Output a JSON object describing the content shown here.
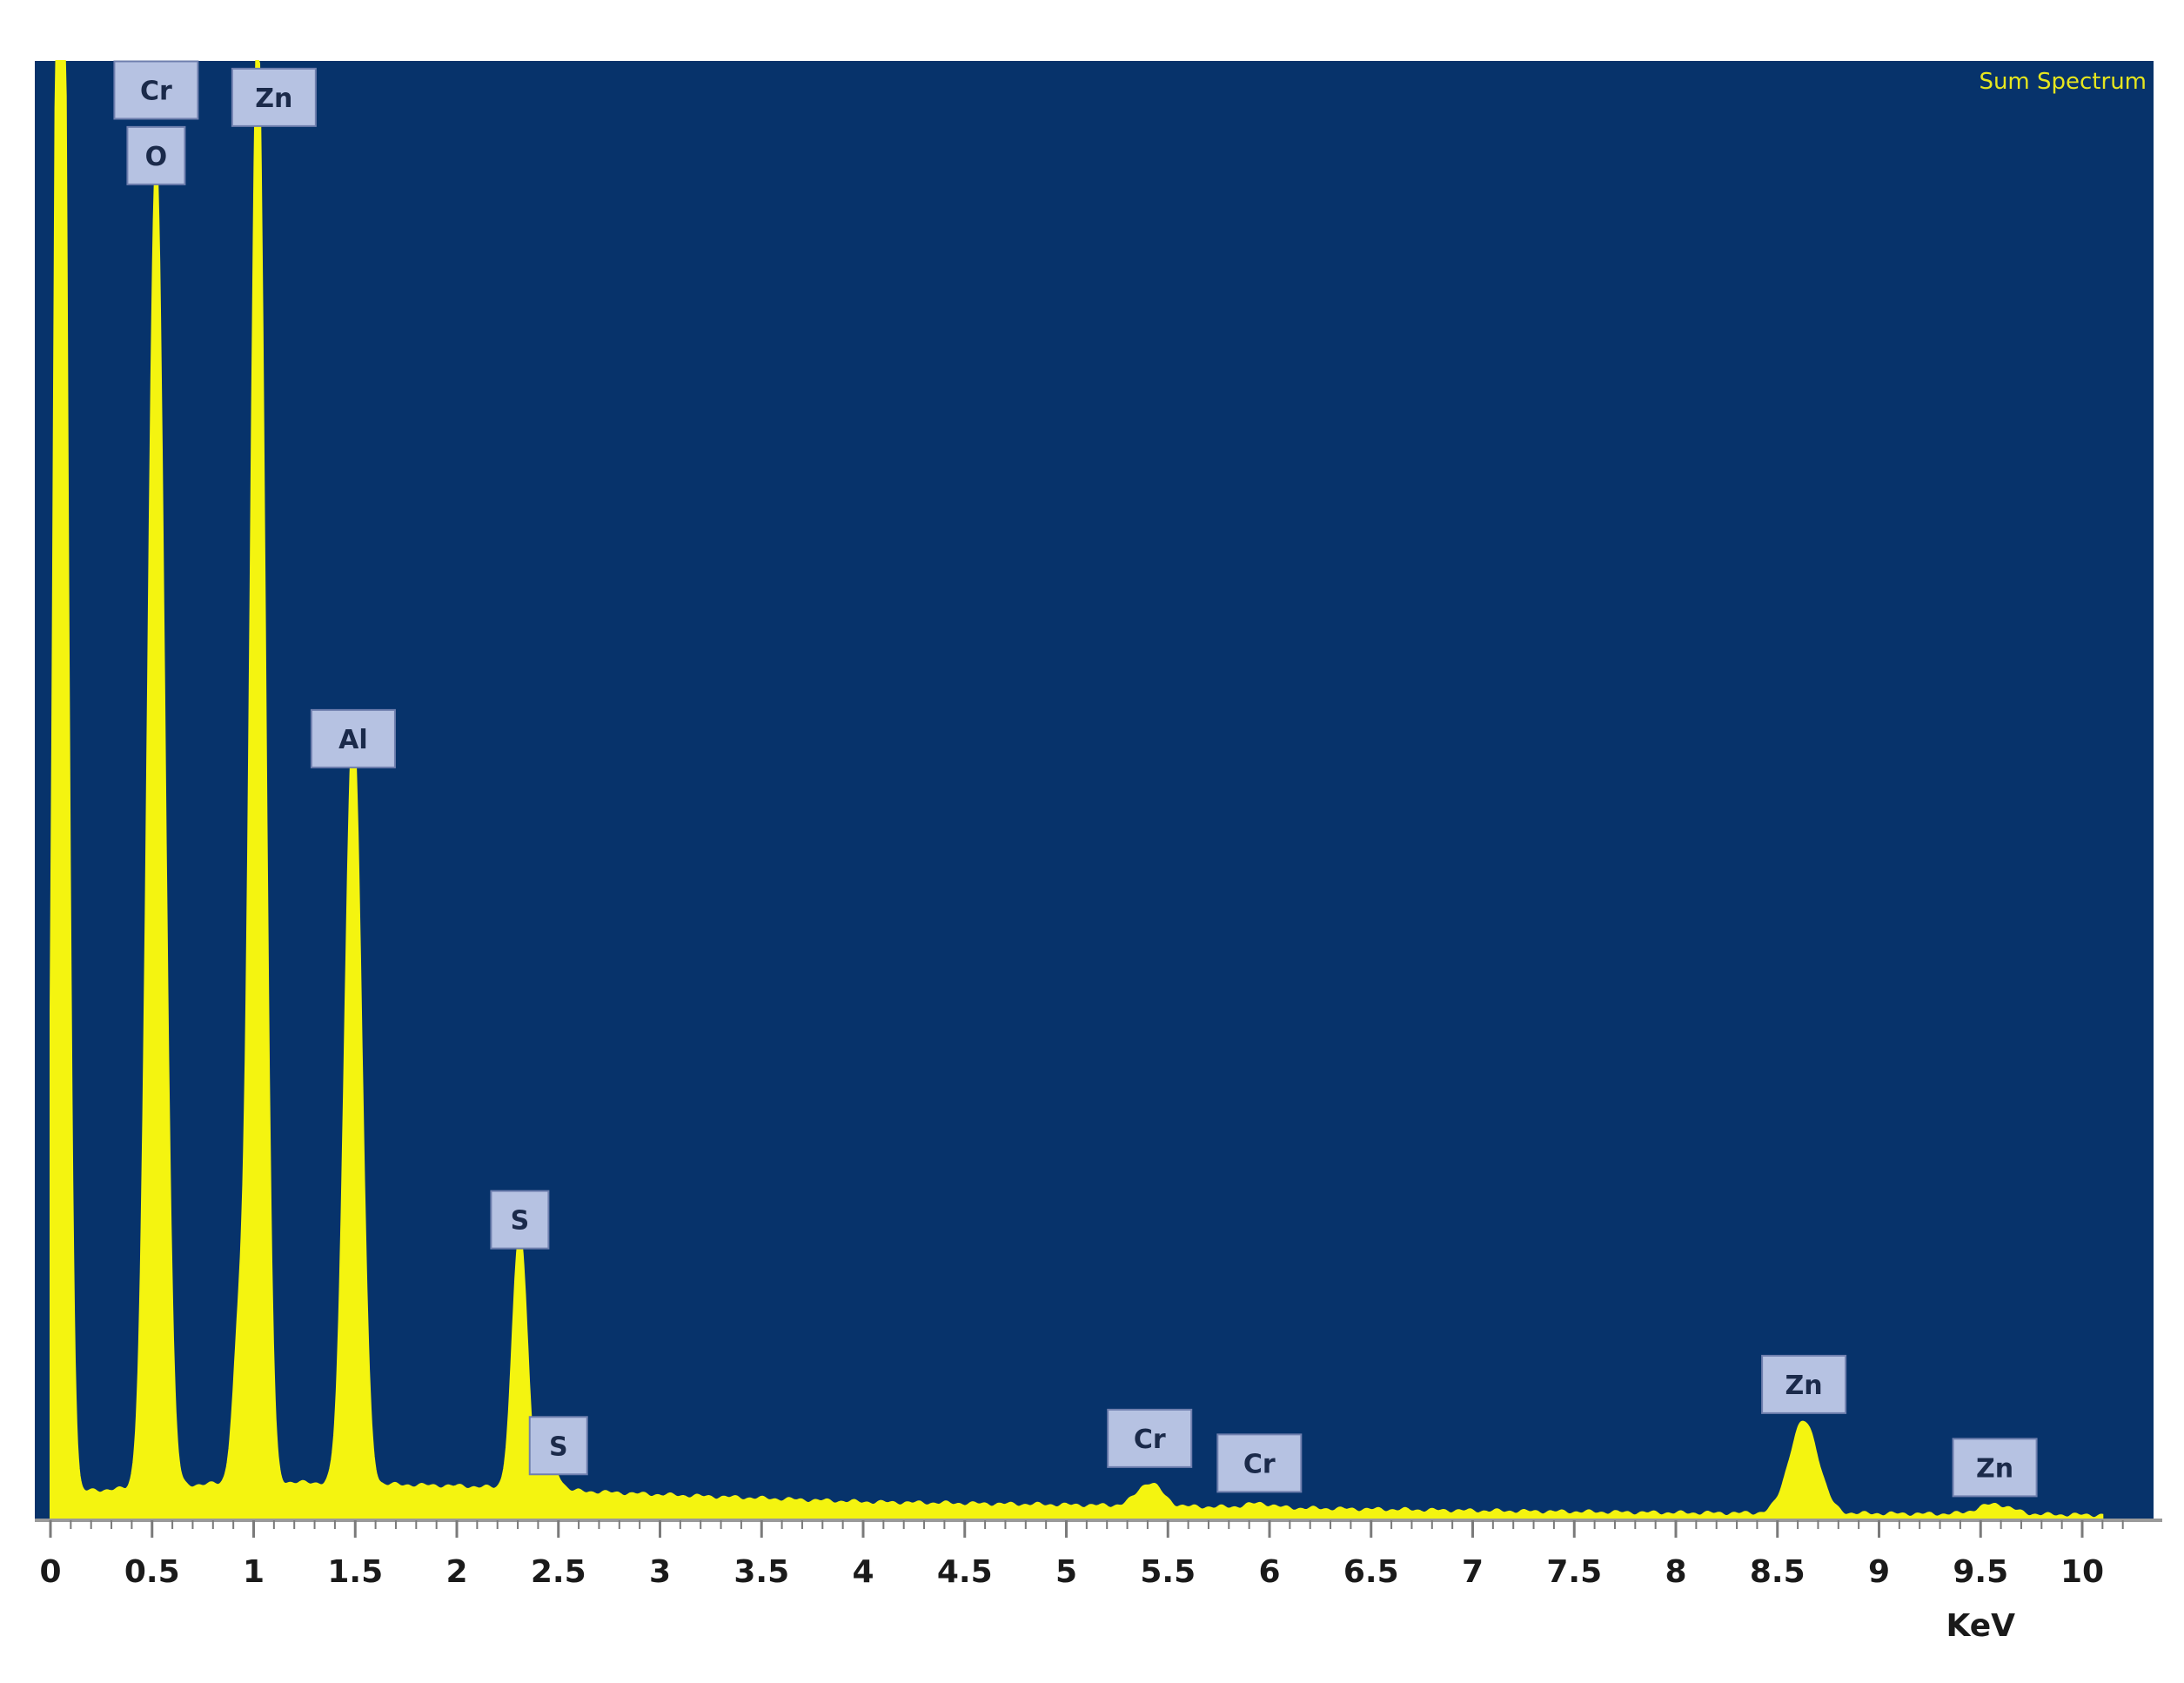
{
  "chart_data": {
    "type": "area",
    "title": "",
    "legend": "Sum Spectrum",
    "legend_position": "top-right",
    "xlabel": "KeV",
    "ylabel": "",
    "xlim": [
      0,
      10.2
    ],
    "ylim": [
      0,
      100
    ],
    "grid": false,
    "x_ticks": [
      "0",
      "0.5",
      "1",
      "1.5",
      "2",
      "2.5",
      "3",
      "3.5",
      "4",
      "4.5",
      "5",
      "5.5",
      "6",
      "6.5",
      "7",
      "7.5",
      "8",
      "8.5",
      "9",
      "9.5",
      "10"
    ],
    "colors": {
      "plot_background": "#07336b",
      "spectrum": "#f4f410",
      "label_box": "#b6c2e2",
      "label_border": "#6f7fae"
    },
    "baseline": [
      [
        0.1,
        1.8
      ],
      [
        1,
        2.5
      ],
      [
        2,
        2.2
      ],
      [
        3,
        1.6
      ],
      [
        4,
        1.1
      ],
      [
        5,
        0.9
      ],
      [
        6,
        0.7
      ],
      [
        7,
        0.5
      ],
      [
        8,
        0.35
      ],
      [
        9,
        0.3
      ],
      [
        10.1,
        0.2
      ]
    ],
    "peaks": [
      {
        "center": 0.05,
        "height": 140,
        "width": 0.03
      },
      {
        "center": 0.52,
        "height": 91,
        "width": 0.04
      },
      {
        "center": 0.93,
        "height": 10,
        "width": 0.03
      },
      {
        "center": 1.02,
        "height": 100,
        "width": 0.035
      },
      {
        "center": 1.49,
        "height": 52,
        "width": 0.04
      },
      {
        "center": 2.31,
        "height": 17.5,
        "width": 0.035
      },
      {
        "center": 2.46,
        "height": 1.8,
        "width": 0.04
      },
      {
        "center": 5.41,
        "height": 1.6,
        "width": 0.06
      },
      {
        "center": 5.95,
        "height": 0.3,
        "width": 0.06
      },
      {
        "center": 8.63,
        "height": 6.3,
        "width": 0.07
      },
      {
        "center": 9.57,
        "height": 0.7,
        "width": 0.08
      }
    ],
    "peak_labels": [
      {
        "text": "Cr",
        "x": 0.52,
        "y": 98
      },
      {
        "text": "O",
        "x": 0.52,
        "y": 93.5
      },
      {
        "text": "Zn",
        "x": 1.1,
        "y": 97.5
      },
      {
        "text": "Al",
        "x": 1.49,
        "y": 53.5
      },
      {
        "text": "S",
        "x": 2.31,
        "y": 20.5
      },
      {
        "text": "S",
        "x": 2.5,
        "y": 5
      },
      {
        "text": "Cr",
        "x": 5.41,
        "y": 5.5
      },
      {
        "text": "Cr",
        "x": 5.95,
        "y": 3.8
      },
      {
        "text": "Zn",
        "x": 8.63,
        "y": 9.2
      },
      {
        "text": "Zn",
        "x": 9.57,
        "y": 3.5
      }
    ]
  }
}
